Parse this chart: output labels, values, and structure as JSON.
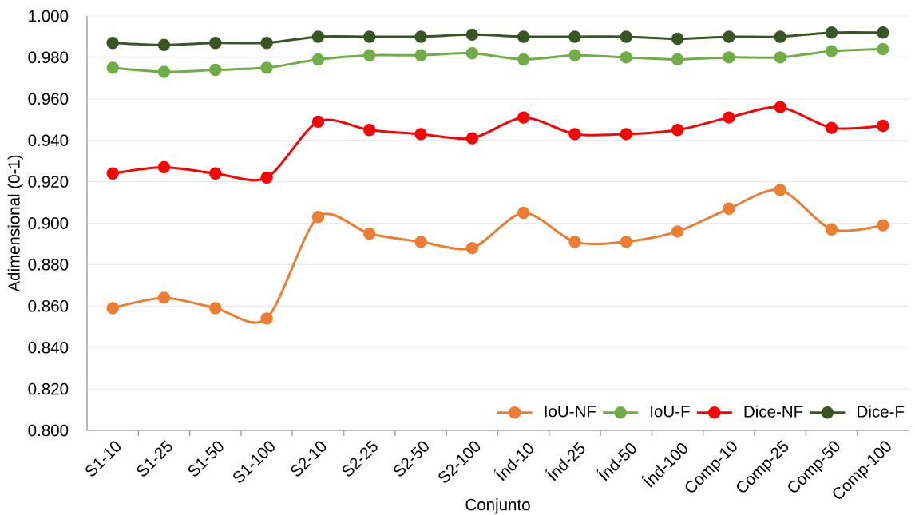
{
  "chart_data": {
    "type": "line",
    "categories": [
      "S1-10",
      "S1-25",
      "S1-50",
      "S1-100",
      "S2-10",
      "S2-25",
      "S2-50",
      "S2-100",
      "Índ-10",
      "Índ-25",
      "Índ-50",
      "Índ-100",
      "Comp-10",
      "Comp-25",
      "Comp-50",
      "Comp-100"
    ],
    "series": [
      {
        "name": "IoU-NF",
        "color": "#ed7d31",
        "values": [
          0.859,
          0.864,
          0.859,
          0.854,
          0.903,
          0.895,
          0.891,
          0.888,
          0.905,
          0.891,
          0.891,
          0.896,
          0.907,
          0.916,
          0.897,
          0.899
        ]
      },
      {
        "name": "IoU-F",
        "color": "#70ad47",
        "values": [
          0.975,
          0.973,
          0.974,
          0.975,
          0.979,
          0.981,
          0.981,
          0.982,
          0.979,
          0.981,
          0.98,
          0.979,
          0.98,
          0.98,
          0.983,
          0.984
        ]
      },
      {
        "name": "Dice-NF",
        "color": "#ff0000",
        "values": [
          0.924,
          0.927,
          0.924,
          0.922,
          0.949,
          0.945,
          0.943,
          0.941,
          0.951,
          0.943,
          0.943,
          0.945,
          0.951,
          0.956,
          0.946,
          0.947
        ]
      },
      {
        "name": "Dice-F",
        "color": "#375623",
        "values": [
          0.987,
          0.986,
          0.987,
          0.987,
          0.99,
          0.99,
          0.99,
          0.991,
          0.99,
          0.99,
          0.99,
          0.989,
          0.99,
          0.99,
          0.992,
          0.992
        ]
      }
    ],
    "xlabel": "Conjunto",
    "ylabel": "Adimensional (0-1)",
    "ylim": [
      0.8,
      1.0
    ],
    "yticks": [
      {
        "value": 0.8,
        "label": "0.800"
      },
      {
        "value": 0.82,
        "label": "0.820"
      },
      {
        "value": 0.84,
        "label": "0.840"
      },
      {
        "value": 0.86,
        "label": "0.860"
      },
      {
        "value": 0.88,
        "label": "0.880"
      },
      {
        "value": 0.9,
        "label": "0.900"
      },
      {
        "value": 0.92,
        "label": "0.920"
      },
      {
        "value": 0.94,
        "label": "0.940"
      },
      {
        "value": 0.96,
        "label": "0.960"
      },
      {
        "value": 0.98,
        "label": "0.980"
      },
      {
        "value": 1.0,
        "label": "1.000"
      }
    ],
    "grid": "y",
    "legend": "bottom right",
    "marker": "circle",
    "line_style": "solid"
  }
}
